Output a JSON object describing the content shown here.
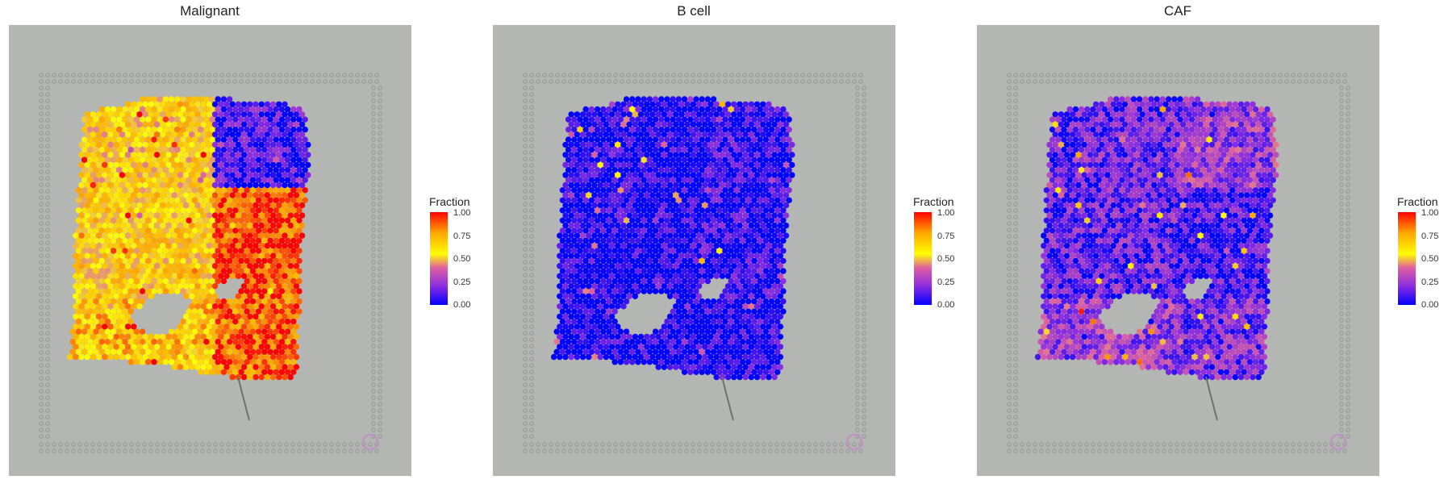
{
  "chart_data": [
    {
      "type": "heatmap",
      "title": "Malignant",
      "legend_title": "Fraction",
      "legend_ticks": [
        "1.00",
        "0.75",
        "0.50",
        "0.25",
        "0.00"
      ],
      "color_scale": [
        "#0000ff",
        "#8a2be2",
        "#e060a0",
        "#ffff00",
        "#ffa500",
        "#ff0000"
      ],
      "value_range": [
        0,
        1
      ],
      "legend_placement": "right",
      "background": "#b4b6b4",
      "regions": [
        {
          "name": "upper-left",
          "mean_fraction": 0.6
        },
        {
          "name": "upper-right",
          "mean_fraction": 0.08
        },
        {
          "name": "middle-left",
          "mean_fraction": 0.62
        },
        {
          "name": "middle-right",
          "mean_fraction": 0.9
        },
        {
          "name": "lower-left",
          "mean_fraction": 0.7
        },
        {
          "name": "lower-right",
          "mean_fraction": 0.88
        }
      ]
    },
    {
      "type": "heatmap",
      "title": "B cell",
      "legend_title": "Fraction",
      "legend_ticks": [
        "1.00",
        "0.75",
        "0.50",
        "0.25",
        "0.00"
      ],
      "color_scale": [
        "#0000ff",
        "#8a2be2",
        "#e060a0",
        "#ffff00",
        "#ffa500",
        "#ff0000"
      ],
      "value_range": [
        0,
        1
      ],
      "legend_placement": "right",
      "background": "#b4b6b4",
      "regions": [
        {
          "name": "upper-left",
          "mean_fraction": 0.02
        },
        {
          "name": "upper-right",
          "mean_fraction": 0.05
        },
        {
          "name": "middle-left",
          "mean_fraction": 0.02
        },
        {
          "name": "middle-right",
          "mean_fraction": 0.05
        },
        {
          "name": "lower-left",
          "mean_fraction": 0.01
        },
        {
          "name": "lower-right",
          "mean_fraction": 0.02
        }
      ]
    },
    {
      "type": "heatmap",
      "title": "CAF",
      "legend_title": "Fraction",
      "legend_ticks": [
        "1.00",
        "0.75",
        "0.50",
        "0.25",
        "0.00"
      ],
      "color_scale": [
        "#0000ff",
        "#8a2be2",
        "#e060a0",
        "#ffff00",
        "#ffa500",
        "#ff0000"
      ],
      "value_range": [
        0,
        1
      ],
      "legend_placement": "right",
      "background": "#b4b6b4",
      "regions": [
        {
          "name": "upper-left",
          "mean_fraction": 0.15
        },
        {
          "name": "upper-right",
          "mean_fraction": 0.25
        },
        {
          "name": "middle-left",
          "mean_fraction": 0.14
        },
        {
          "name": "middle-right",
          "mean_fraction": 0.1
        },
        {
          "name": "lower-left",
          "mean_fraction": 0.25
        },
        {
          "name": "lower-right",
          "mean_fraction": 0.18
        }
      ]
    }
  ]
}
